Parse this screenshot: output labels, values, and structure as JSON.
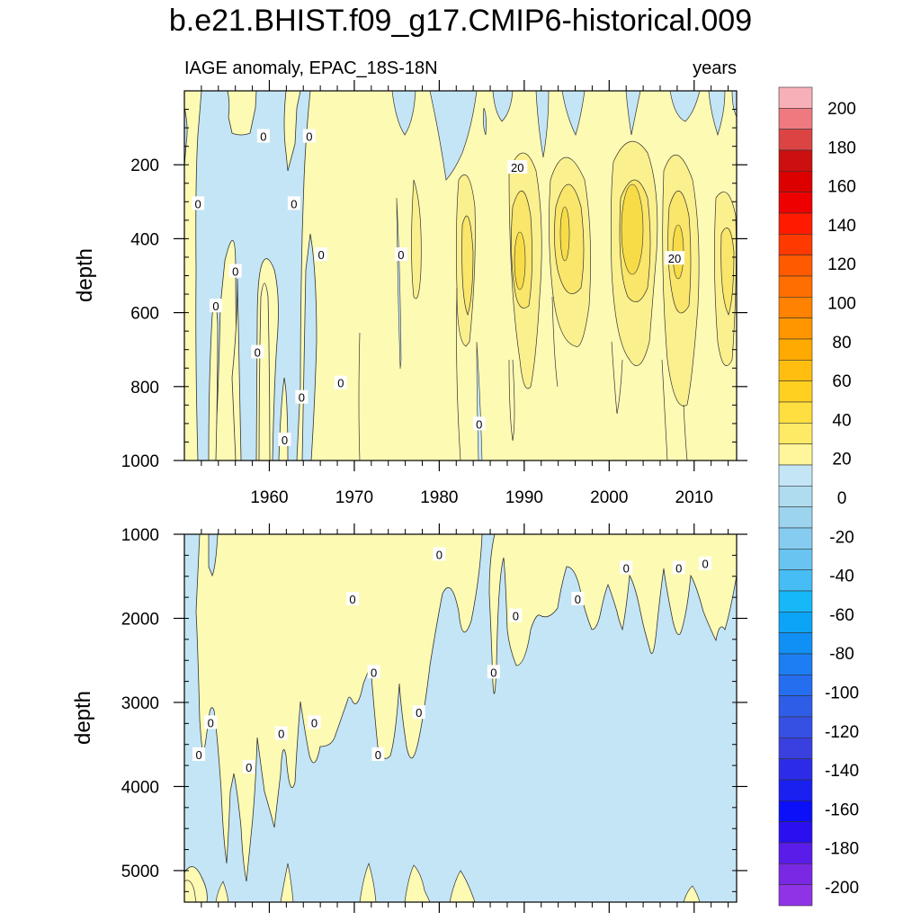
{
  "chart_data": {
    "type": "contour",
    "title": "b.e21.BHIST.f09_g17.CMIP6-historical.009",
    "panels": [
      {
        "id": "upper",
        "left_title": "IAGE anomaly, EPAC_18S-18N",
        "right_title": "years",
        "ylabel": "depth",
        "xlim": [
          1950,
          2015
        ],
        "ylim": [
          0,
          1000
        ],
        "y_reversed": true,
        "y_ticks": [
          "200",
          "400",
          "600",
          "800",
          "1000"
        ],
        "y_tick_values": [
          200,
          400,
          600,
          800,
          1000
        ],
        "x_ticks": [
          "1960",
          "1970",
          "1980",
          "1990",
          "2000",
          "2010"
        ],
        "x_tick_values": [
          1960,
          1970,
          1980,
          1990,
          2000,
          2010
        ],
        "contour_labels": [
          {
            "text": "0",
            "year": 1959.3,
            "depth": 123
          },
          {
            "text": "0",
            "year": 1964.7,
            "depth": 123
          },
          {
            "text": "0",
            "year": 1951.6,
            "depth": 305
          },
          {
            "text": "0",
            "year": 1962.9,
            "depth": 305
          },
          {
            "text": "0",
            "year": 1956.0,
            "depth": 488
          },
          {
            "text": "0",
            "year": 1953.7,
            "depth": 582
          },
          {
            "text": "0",
            "year": 1966.1,
            "depth": 443
          },
          {
            "text": "0",
            "year": 1975.5,
            "depth": 443
          },
          {
            "text": "0",
            "year": 1958.6,
            "depth": 707
          },
          {
            "text": "0",
            "year": 1963.8,
            "depth": 829
          },
          {
            "text": "0",
            "year": 1968.4,
            "depth": 790
          },
          {
            "text": "0",
            "year": 1961.8,
            "depth": 944
          },
          {
            "text": "0",
            "year": 1984.7,
            "depth": 901
          },
          {
            "text": "20",
            "year": 1989.2,
            "depth": 207
          },
          {
            "text": "20",
            "year": 2007.7,
            "depth": 453
          }
        ],
        "description_levels": [
          0,
          10,
          20,
          30
        ],
        "hotspots": [
          {
            "year": 1984.0,
            "depth": 330,
            "value": 15
          },
          {
            "year": 1989.5,
            "depth": 330,
            "value": 22
          },
          {
            "year": 1995.0,
            "depth": 320,
            "value": 25
          },
          {
            "year": 2002.5,
            "depth": 320,
            "value": 28
          },
          {
            "year": 2008.0,
            "depth": 320,
            "value": 24
          },
          {
            "year": 2013.5,
            "depth": 400,
            "value": 18
          },
          {
            "year": 1976.5,
            "depth": 320,
            "value": 10
          }
        ]
      },
      {
        "id": "lower",
        "left_title": "",
        "right_title": "",
        "ylabel": "depth",
        "xlim": [
          1950,
          2015
        ],
        "ylim": [
          1000,
          5375
        ],
        "y_reversed": true,
        "y_ticks": [
          "1000",
          "2000",
          "3000",
          "4000",
          "5000"
        ],
        "y_tick_values": [
          1000,
          2000,
          3000,
          4000,
          5000
        ],
        "contour_labels": [
          {
            "text": "0",
            "year": 1980.0,
            "depth": 1240
          },
          {
            "text": "0",
            "year": 1969.8,
            "depth": 1770
          },
          {
            "text": "0",
            "year": 1972.3,
            "depth": 2640
          },
          {
            "text": "0",
            "year": 1989.0,
            "depth": 1970
          },
          {
            "text": "0",
            "year": 1986.4,
            "depth": 2640
          },
          {
            "text": "0",
            "year": 1996.3,
            "depth": 1770
          },
          {
            "text": "0",
            "year": 2002.0,
            "depth": 1400
          },
          {
            "text": "0",
            "year": 2008.2,
            "depth": 1400
          },
          {
            "text": "0",
            "year": 2011.3,
            "depth": 1350
          },
          {
            "text": "0",
            "year": 1953.1,
            "depth": 3240
          },
          {
            "text": "0",
            "year": 1951.7,
            "depth": 3620
          },
          {
            "text": "0",
            "year": 1957.6,
            "depth": 3770
          },
          {
            "text": "0",
            "year": 1961.4,
            "depth": 3370
          },
          {
            "text": "0",
            "year": 1965.3,
            "depth": 3240
          },
          {
            "text": "0",
            "year": 1972.8,
            "depth": 3620
          },
          {
            "text": "0",
            "year": 1977.6,
            "depth": 3120
          }
        ]
      }
    ],
    "colorbar": {
      "labels": [
        "200",
        "180",
        "160",
        "140",
        "120",
        "100",
        "80",
        "60",
        "40",
        "20",
        "0",
        "-20",
        "-40",
        "-60",
        "-80",
        "-100",
        "-120",
        "-140",
        "-160",
        "-180",
        "-200"
      ],
      "colors": [
        "#f8b0b8",
        "#ee7a80",
        "#dc4444",
        "#cc1010",
        "#dc0000",
        "#ee0000",
        "#ff1a00",
        "#ff3a00",
        "#ff5a00",
        "#ff6e00",
        "#ff8200",
        "#ff9600",
        "#ffaa00",
        "#ffbe10",
        "#ffd020",
        "#ffde40",
        "#ffea66",
        "#fff59a",
        "#c4e5f5",
        "#b0dcf0",
        "#9cd4ee",
        "#86ccf0",
        "#6ac4f2",
        "#46bef5",
        "#16b8f8",
        "#0ca4f6",
        "#1090f4",
        "#1c7ef2",
        "#266ef0",
        "#2e5ee8",
        "#3650e4",
        "#3a40e0",
        "#2c2ce8",
        "#1a20f0",
        "#0c10f8",
        "#2a10f0",
        "#5a1ce8",
        "#7a28e4",
        "#9033e6"
      ]
    }
  }
}
